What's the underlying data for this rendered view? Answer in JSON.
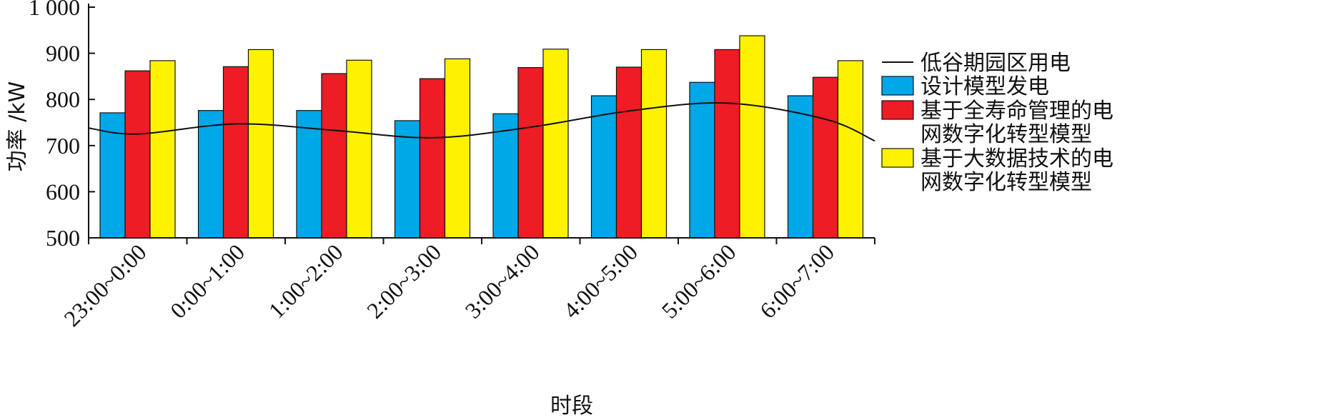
{
  "chart_data": {
    "type": "bar",
    "xlabel": "时段",
    "ylabel": "功率 /kW",
    "ylim": [
      500,
      1000
    ],
    "yticks": [
      500,
      600,
      700,
      800,
      900,
      1000
    ],
    "ytick_labels": [
      "500",
      "600",
      "700",
      "800",
      "900",
      "1 000"
    ],
    "categories": [
      "23:00~0:00",
      "0:00~1:00",
      "1:00~2:00",
      "2:00~3:00",
      "3:00~4:00",
      "4:00~5:00",
      "5:00~6:00",
      "6:00~7:00"
    ],
    "series": [
      {
        "name": "设计模型发电",
        "type": "bar",
        "color": "#00a8e8",
        "values": [
          771,
          776,
          776,
          754,
          769,
          808,
          837,
          808
        ]
      },
      {
        "name": "基于全寿命管理的电网数字化转型模型",
        "legend_lines": [
          "基于全寿命管理的电",
          "网数字化转型模型"
        ],
        "type": "bar",
        "color": "#ee1c25",
        "values": [
          862,
          871,
          856,
          845,
          869,
          870,
          908,
          848
        ]
      },
      {
        "name": "基于大数据技术的电网数字化转型模型",
        "legend_lines": [
          "基于大数据技术的电",
          "网数字化转型模型"
        ],
        "type": "bar",
        "color": "#fff200",
        "values": [
          884,
          908,
          885,
          888,
          909,
          908,
          938,
          884
        ]
      },
      {
        "name": "低谷期园区用电",
        "type": "line",
        "color": "#111111",
        "x": [
          -0.5,
          0,
          1,
          2,
          3,
          4,
          5,
          6,
          7,
          7.5
        ],
        "values": [
          738,
          725,
          747,
          733,
          717,
          740,
          775,
          792,
          757,
          710
        ]
      }
    ],
    "legend_order": [
      3,
      0,
      1,
      2
    ],
    "legend": "right",
    "grid": false
  }
}
